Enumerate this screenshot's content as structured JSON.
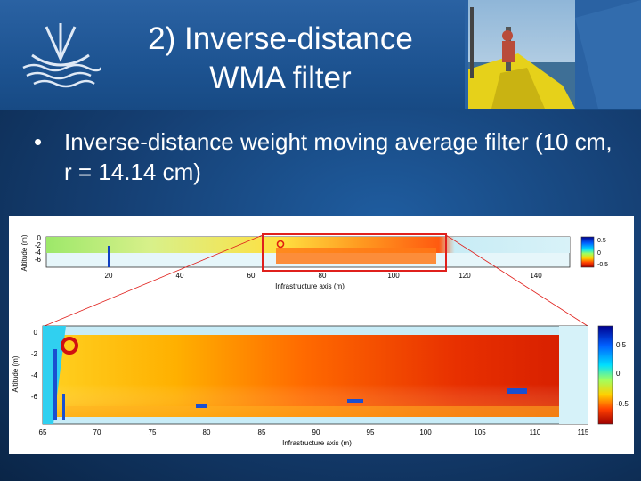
{
  "slide": {
    "title_line1": "2) Inverse-distance",
    "title_line2": "WMA filter",
    "bullet": "Inverse-distance weight moving average filter (10 cm, r = 14.14 cm)"
  },
  "colors": {
    "header": "#1d5391",
    "background": "#153f73",
    "highlight_box": "#e0201c"
  },
  "icons": {
    "logo": "boat-wave-logo",
    "photo": "boat-deck-photo",
    "bullet": "bullet-dot"
  },
  "chart_data": [
    {
      "type": "heatmap",
      "xlabel": "Infrastructure axis (m)",
      "ylabel": "Altitude (m)",
      "x_ticks": [
        "20",
        "40",
        "60",
        "80",
        "100",
        "120",
        "140"
      ],
      "y_ticks": [
        "0",
        "-2",
        "-4",
        "-6"
      ],
      "colorbar_ticks": [
        "0.5",
        "0",
        "-0.5"
      ],
      "highlight_range": [
        64,
        97
      ]
    },
    {
      "type": "heatmap",
      "xlabel": "Infrastructure axis (m)",
      "ylabel": "Altitude (m)",
      "x_ticks": [
        "65",
        "70",
        "75",
        "80",
        "85",
        "90",
        "95",
        "100",
        "105",
        "110",
        "115"
      ],
      "y_ticks": [
        "0",
        "-2",
        "-4",
        "-6"
      ],
      "colorbar_ticks": [
        "0.5",
        "0",
        "-0.5"
      ],
      "xlim": [
        65,
        115
      ]
    }
  ]
}
